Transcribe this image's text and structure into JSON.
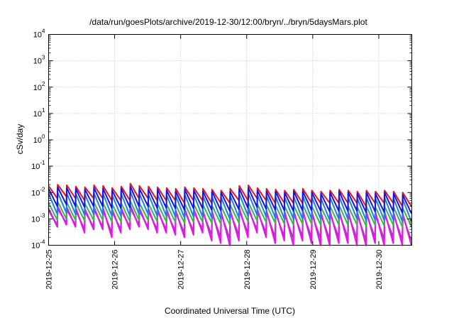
{
  "chart_data": {
    "type": "line",
    "title": "/data/run/goesPlots/archive/2019-12-30/12:00/bryn/../bryn/5daysMars.plot",
    "xlabel": "Coordinated Universal Time (UTC)",
    "ylabel": "cSv/day",
    "yscale": "log",
    "ylim": [
      0.0001,
      10000
    ],
    "xlim": [
      "2019-12-25T00:00",
      "2019-12-30T12:00"
    ],
    "x_ticks": [
      "2019-12-25",
      "2019-12-26",
      "2019-12-27",
      "2019-12-28",
      "2019-12-29",
      "2019-12-30"
    ],
    "y_ticks": [
      {
        "base": "10",
        "exp": "-4",
        "value": 0.0001
      },
      {
        "base": "10",
        "exp": "-3",
        "value": 0.001
      },
      {
        "base": "10",
        "exp": "-2",
        "value": 0.01
      },
      {
        "base": "10",
        "exp": "-1",
        "value": 0.1
      },
      {
        "base": "10",
        "exp": "0",
        "value": 1
      },
      {
        "base": "10",
        "exp": "1",
        "value": 10
      },
      {
        "base": "10",
        "exp": "2",
        "value": 100
      },
      {
        "base": "10",
        "exp": "3",
        "value": 1000
      },
      {
        "base": "10",
        "exp": "4",
        "value": 10000
      }
    ],
    "grid": true,
    "legend": "none",
    "pattern": "sawtooth: value jumps up at each cycle start (~every 3.4 h) then decays",
    "series": [
      {
        "color": "#e8141e",
        "cycle_peaks": [
          0.018,
          0.02,
          0.019,
          0.017,
          0.016,
          0.019,
          0.018,
          0.015,
          0.017,
          0.022,
          0.018,
          0.017,
          0.016,
          0.015,
          0.014,
          0.016,
          0.015,
          0.014,
          0.013,
          0.012,
          0.014,
          0.018,
          0.019,
          0.015,
          0.014,
          0.013,
          0.012,
          0.013,
          0.014,
          0.012,
          0.011,
          0.012,
          0.013,
          0.012,
          0.011,
          0.012,
          0.011,
          0.012,
          0.011,
          0.01
        ],
        "cycle_troughs": [
          0.006,
          0.007,
          0.006,
          0.005,
          0.006,
          0.006,
          0.005,
          0.005,
          0.005,
          0.006,
          0.006,
          0.005,
          0.005,
          0.005,
          0.004,
          0.005,
          0.005,
          0.004,
          0.004,
          0.004,
          0.005,
          0.005,
          0.006,
          0.005,
          0.004,
          0.004,
          0.004,
          0.004,
          0.004,
          0.004,
          0.004,
          0.004,
          0.004,
          0.004,
          0.003,
          0.004,
          0.004,
          0.004,
          0.003,
          0.003
        ]
      },
      {
        "color": "#1414e6",
        "cycle_peaks": [
          0.014,
          0.016,
          0.015,
          0.014,
          0.013,
          0.015,
          0.014,
          0.012,
          0.014,
          0.017,
          0.014,
          0.013,
          0.013,
          0.012,
          0.011,
          0.013,
          0.012,
          0.011,
          0.011,
          0.01,
          0.011,
          0.014,
          0.015,
          0.012,
          0.011,
          0.011,
          0.01,
          0.011,
          0.011,
          0.01,
          0.009,
          0.01,
          0.011,
          0.01,
          0.009,
          0.01,
          0.009,
          0.01,
          0.009,
          0.008
        ],
        "cycle_troughs": [
          0.003,
          0.0035,
          0.003,
          0.0028,
          0.003,
          0.003,
          0.0026,
          0.0026,
          0.0027,
          0.003,
          0.003,
          0.0026,
          0.0026,
          0.0025,
          0.0022,
          0.0025,
          0.0025,
          0.0022,
          0.0021,
          0.002,
          0.0023,
          0.0026,
          0.0028,
          0.0024,
          0.0022,
          0.0021,
          0.002,
          0.0021,
          0.0021,
          0.002,
          0.0019,
          0.002,
          0.002,
          0.002,
          0.0018,
          0.0019,
          0.0018,
          0.0019,
          0.0017,
          0.0016
        ]
      },
      {
        "color": "#1e7ee6",
        "cycle_peaks": [
          0.009,
          0.01,
          0.0095,
          0.009,
          0.0085,
          0.0095,
          0.009,
          0.008,
          0.009,
          0.011,
          0.009,
          0.0085,
          0.0085,
          0.008,
          0.0075,
          0.0085,
          0.008,
          0.0075,
          0.007,
          0.0065,
          0.0075,
          0.009,
          0.0095,
          0.008,
          0.0075,
          0.007,
          0.0065,
          0.007,
          0.0075,
          0.0065,
          0.006,
          0.0065,
          0.007,
          0.0065,
          0.006,
          0.0065,
          0.006,
          0.0065,
          0.006,
          0.0055
        ],
        "cycle_troughs": [
          0.0015,
          0.0017,
          0.0015,
          0.0014,
          0.0015,
          0.0015,
          0.0013,
          0.0013,
          0.0013,
          0.0015,
          0.0015,
          0.0013,
          0.0013,
          0.0012,
          0.0011,
          0.0012,
          0.0012,
          0.0011,
          0.001,
          0.001,
          0.0011,
          0.0013,
          0.0014,
          0.0012,
          0.0011,
          0.001,
          0.001,
          0.001,
          0.001,
          0.001,
          0.0009,
          0.001,
          0.001,
          0.001,
          0.0009,
          0.0009,
          0.0009,
          0.0009,
          0.0008,
          0.0008
        ]
      },
      {
        "color": "#3cb44b",
        "cycle_peaks": [
          0.004,
          0.0045,
          0.0042,
          0.004,
          0.0038,
          0.0042,
          0.004,
          0.0036,
          0.004,
          0.0048,
          0.004,
          0.0038,
          0.0038,
          0.0036,
          0.0034,
          0.0038,
          0.0036,
          0.0034,
          0.0032,
          0.003,
          0.0034,
          0.004,
          0.0042,
          0.0036,
          0.0034,
          0.0032,
          0.003,
          0.0032,
          0.0034,
          0.003,
          0.0028,
          0.003,
          0.0032,
          0.003,
          0.0028,
          0.003,
          0.0028,
          0.003,
          0.0028,
          0.0026
        ],
        "cycle_troughs": [
          0.0009,
          0.001,
          0.0009,
          0.00085,
          0.0009,
          0.0009,
          0.0008,
          0.0008,
          0.0008,
          0.0009,
          0.0009,
          0.0008,
          0.0008,
          0.00075,
          0.0007,
          0.00075,
          0.00075,
          0.0007,
          0.00065,
          0.0006,
          0.0007,
          0.0008,
          0.00085,
          0.00075,
          0.0007,
          0.00065,
          0.0006,
          0.00065,
          0.00065,
          0.0006,
          0.00058,
          0.0006,
          0.0006,
          0.0006,
          0.00055,
          0.00058,
          0.00055,
          0.00058,
          0.0005,
          0.0005
        ]
      },
      {
        "color": "#e614e6",
        "cycle_peaks": [
          0.0025,
          0.003,
          0.0028,
          0.0026,
          0.0024,
          0.0028,
          0.0026,
          0.0023,
          0.0026,
          0.0032,
          0.0026,
          0.0024,
          0.0024,
          0.0023,
          0.0021,
          0.0024,
          0.0023,
          0.0021,
          0.002,
          0.0019,
          0.0021,
          0.0026,
          0.0028,
          0.0023,
          0.0021,
          0.002,
          0.0019,
          0.002,
          0.0021,
          0.0019,
          0.0018,
          0.0019,
          0.002,
          0.0019,
          0.0018,
          0.0019,
          0.0018,
          0.0019,
          0.0017,
          0.0016
        ],
        "cycle_troughs": [
          0.0005,
          0.0006,
          0.0005,
          0.0003,
          0.0004,
          0.0004,
          0.0002,
          0.0003,
          0.0004,
          0.0005,
          0.0004,
          0.0003,
          0.0003,
          0.00025,
          0.0002,
          0.00025,
          0.0003,
          0.00015,
          0.00012,
          0.0001,
          0.00015,
          0.0002,
          0.0003,
          0.0002,
          0.00012,
          0.00015,
          0.0001,
          0.00015,
          0.00012,
          0.0001,
          0.0001,
          0.00012,
          0.00012,
          0.0001,
          0.0001,
          0.00012,
          0.0001,
          0.00012,
          0.0001,
          0.0001
        ]
      },
      {
        "color": "#8a4fb4",
        "cycle_peaks": [
          0.002,
          0.0024,
          0.0022,
          0.002,
          0.0019,
          0.0022,
          0.002,
          0.0018,
          0.002,
          0.0025,
          0.002,
          0.0019,
          0.0019,
          0.0018,
          0.0017,
          0.0019,
          0.0018,
          0.0017,
          0.0016,
          0.0015,
          0.0017,
          0.002,
          0.0022,
          0.0018,
          0.0017,
          0.0016,
          0.0015,
          0.0016,
          0.0017,
          0.0015,
          0.0014,
          0.0015,
          0.0016,
          0.0015,
          0.0014,
          0.0015,
          0.0014,
          0.0015,
          0.0014,
          0.0013
        ],
        "cycle_troughs": [
          0.0006,
          0.0007,
          0.0006,
          0.0004,
          0.0005,
          0.0005,
          0.0003,
          0.0004,
          0.0005,
          0.0006,
          0.0005,
          0.0004,
          0.0004,
          0.00035,
          0.0003,
          0.00035,
          0.0004,
          0.00025,
          0.0002,
          0.00018,
          0.00025,
          0.0003,
          0.0004,
          0.0003,
          0.0002,
          0.00022,
          0.00018,
          0.00022,
          0.0002,
          0.00018,
          0.00017,
          0.0002,
          0.0002,
          0.00018,
          0.00016,
          0.0002,
          0.00017,
          0.0002,
          0.00016,
          0.00015
        ]
      }
    ]
  }
}
